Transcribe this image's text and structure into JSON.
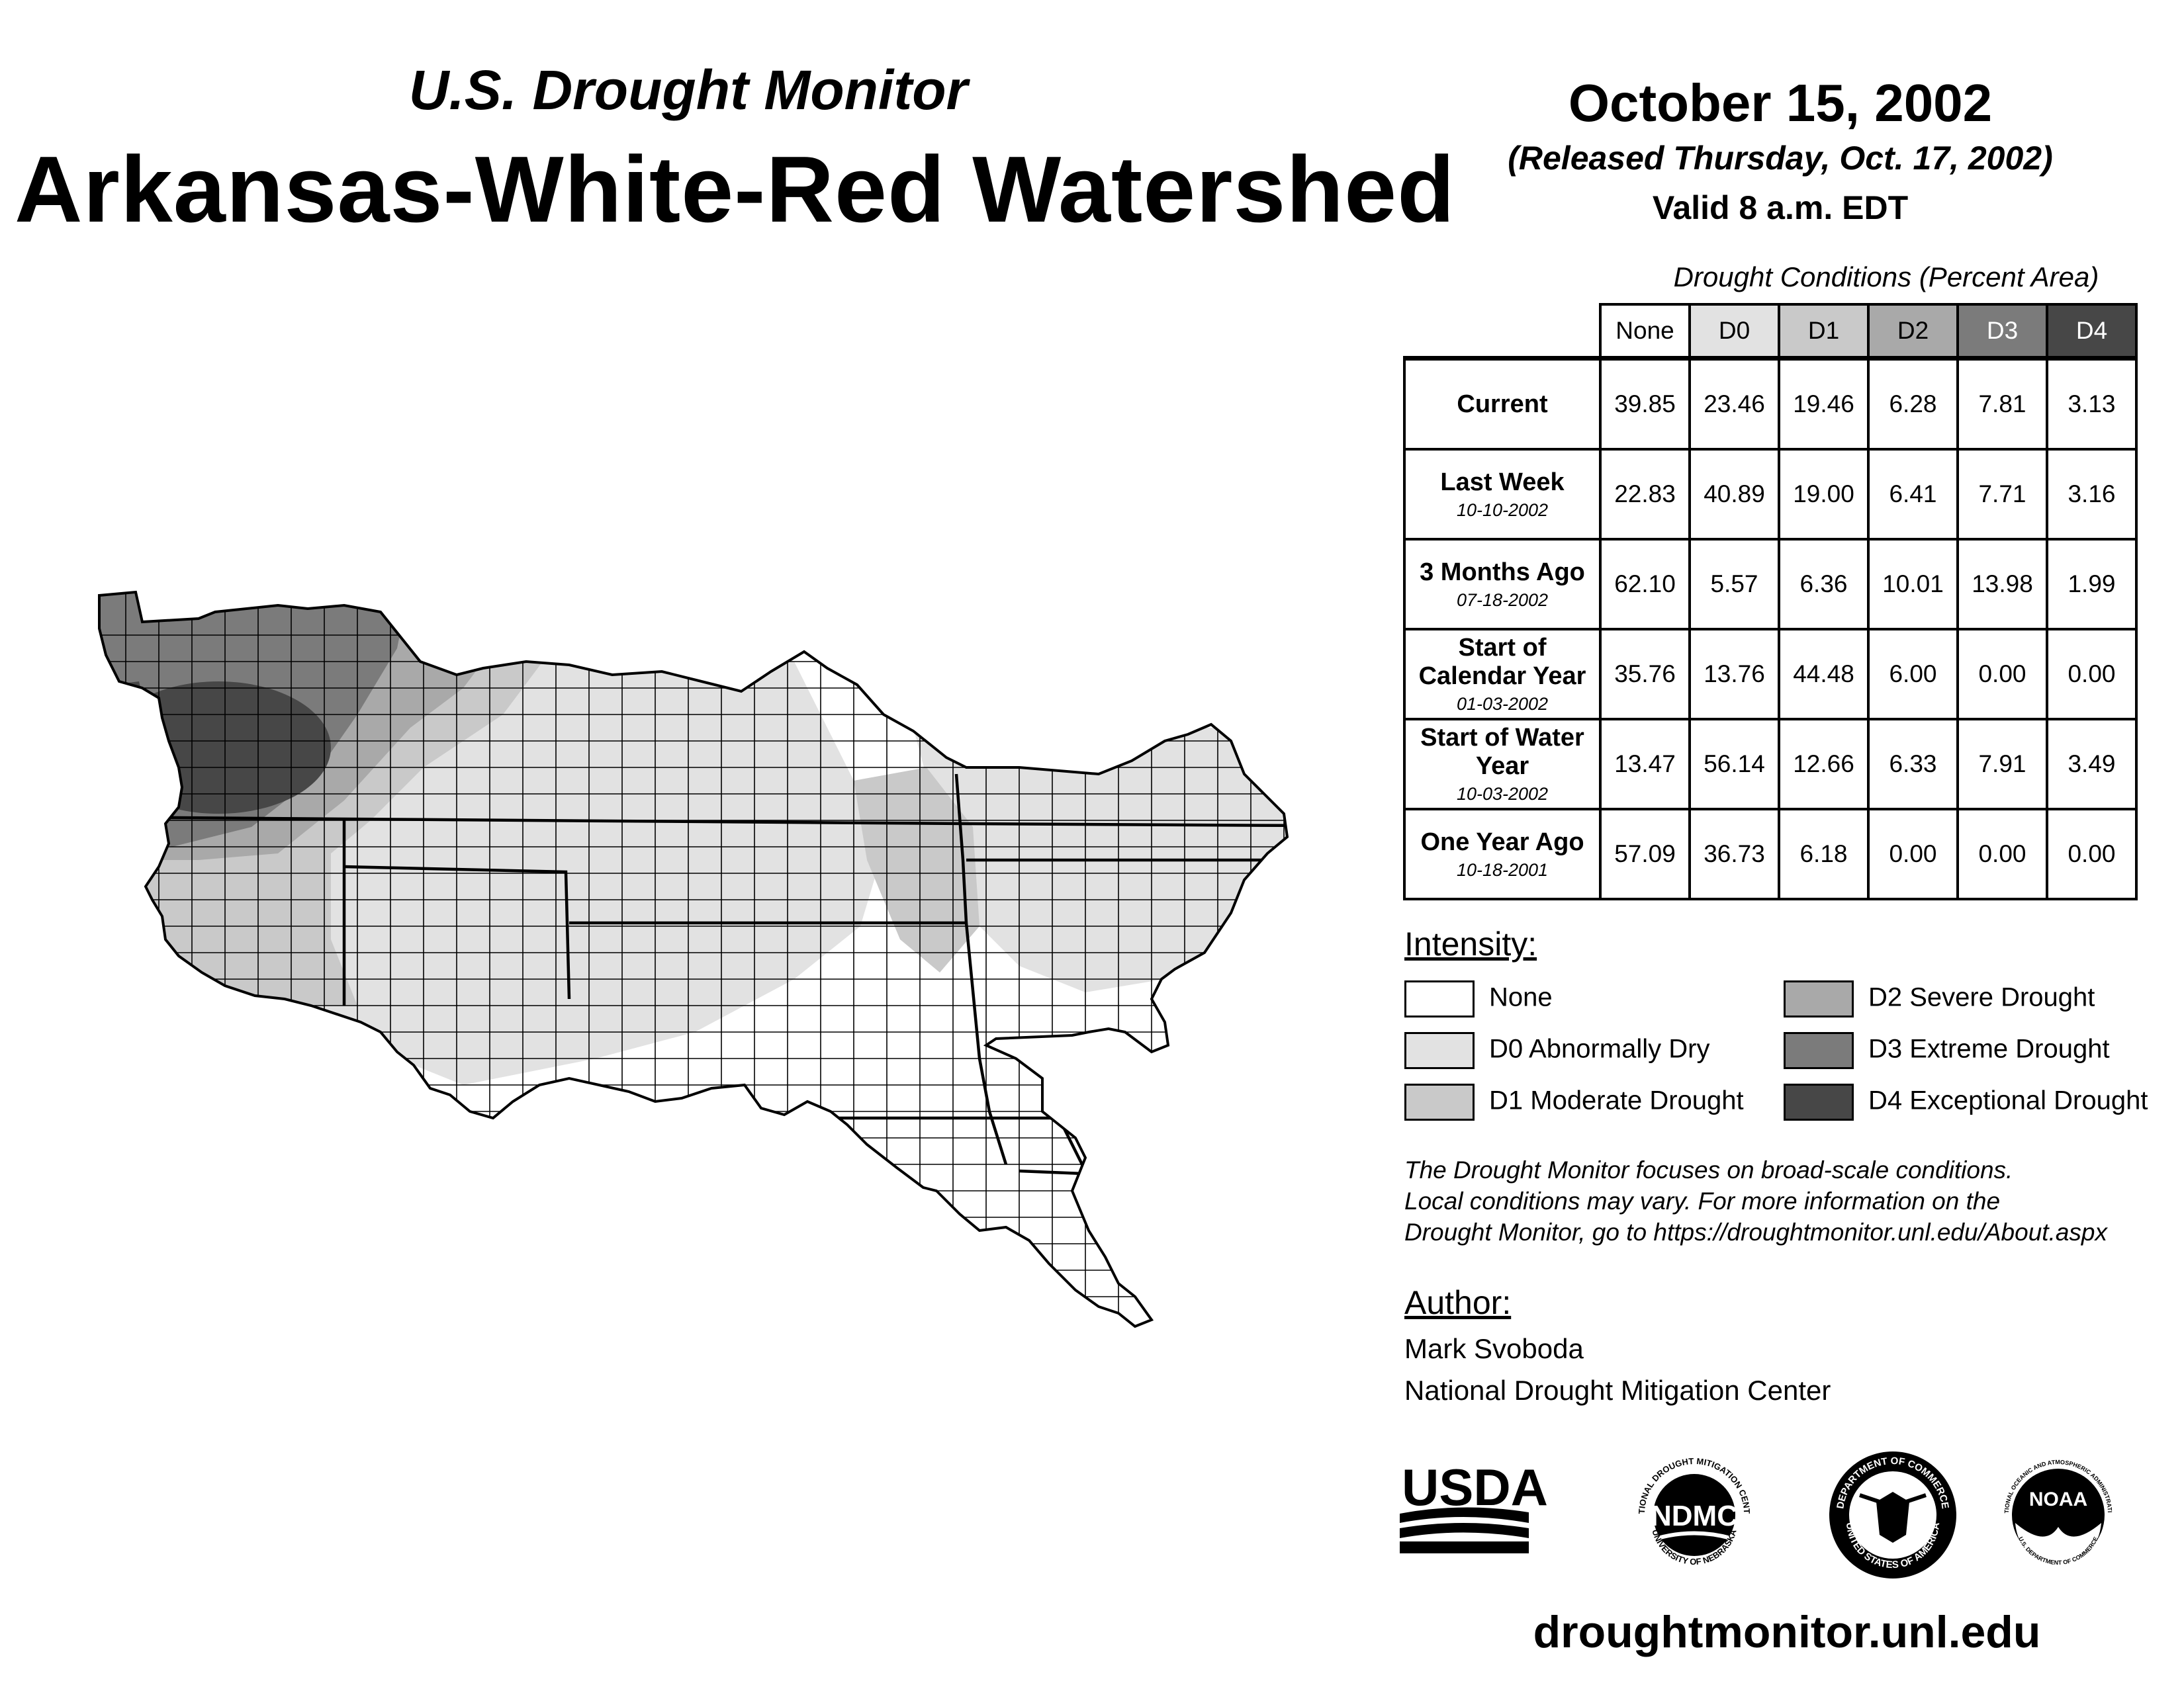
{
  "header": {
    "subtitle": "U.S. Drought Monitor",
    "title": "Arkansas-White-Red Watershed",
    "date": "October 15, 2002",
    "released": "(Released Thursday, Oct. 17, 2002)",
    "valid": "Valid 8 a.m. EDT"
  },
  "table": {
    "caption": "Drought Conditions (Percent Area)",
    "columns": [
      "None",
      "D0",
      "D1",
      "D2",
      "D3",
      "D4"
    ],
    "rows": [
      {
        "label": "Current",
        "date": "",
        "values": [
          "39.85",
          "23.46",
          "19.46",
          "6.28",
          "7.81",
          "3.13"
        ]
      },
      {
        "label": "Last Week",
        "date": "10-10-2002",
        "values": [
          "22.83",
          "40.89",
          "19.00",
          "6.41",
          "7.71",
          "3.16"
        ]
      },
      {
        "label": "3 Months Ago",
        "date": "07-18-2002",
        "values": [
          "62.10",
          "5.57",
          "6.36",
          "10.01",
          "13.98",
          "1.99"
        ]
      },
      {
        "label": "Start of Calendar Year",
        "date": "01-03-2002",
        "values": [
          "35.76",
          "13.76",
          "44.48",
          "6.00",
          "0.00",
          "0.00"
        ]
      },
      {
        "label": "Start of Water Year",
        "date": "10-03-2002",
        "values": [
          "13.47",
          "56.14",
          "12.66",
          "6.33",
          "7.91",
          "3.49"
        ]
      },
      {
        "label": "One Year Ago",
        "date": "10-18-2001",
        "values": [
          "57.09",
          "36.73",
          "6.18",
          "0.00",
          "0.00",
          "0.00"
        ]
      }
    ]
  },
  "legend": {
    "title": "Intensity:",
    "items": [
      {
        "label": "None",
        "color": "#ffffff"
      },
      {
        "label": "D0 Abnormally Dry",
        "color": "#e2e2e2"
      },
      {
        "label": "D1 Moderate Drought",
        "color": "#c9c9c9"
      },
      {
        "label": "D2 Severe Drought",
        "color": "#a9a9a9"
      },
      {
        "label": "D3 Extreme Drought",
        "color": "#7b7b7b"
      },
      {
        "label": "D4 Exceptional Drought",
        "color": "#474747"
      }
    ]
  },
  "note": {
    "line1": "The Drought Monitor focuses on broad-scale conditions.",
    "line2": "Local conditions may vary. For more information on the",
    "line3": "Drought Monitor, go to https://droughtmonitor.unl.edu/About.aspx"
  },
  "author": {
    "title": "Author:",
    "name": "Mark Svoboda",
    "org": "National Drought Mitigation Center"
  },
  "logos": {
    "usda": "USDA",
    "ndmc": "NDMC",
    "ndmc_ring_top": "NATIONAL DROUGHT MITIGATION CENTER",
    "ndmc_ring_bottom": "UNIVERSITY OF NEBRASKA",
    "doc_ring_top": "DEPARTMENT OF COMMERCE",
    "doc_ring_bottom": "UNITED STATES OF AMERICA",
    "noaa": "NOAA",
    "noaa_ring_top": "NATIONAL OCEANIC AND ATMOSPHERIC ADMINISTRATION",
    "noaa_ring_bottom": "U.S. DEPARTMENT OF COMMERCE"
  },
  "website": "droughtmonitor.unl.edu"
}
